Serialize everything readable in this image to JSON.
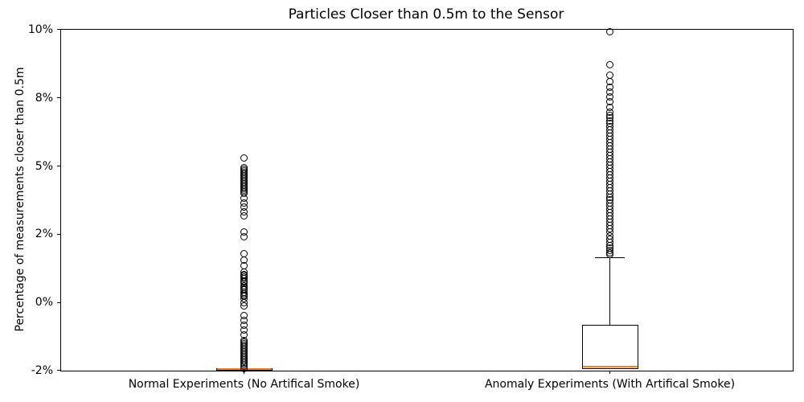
{
  "chart_data": {
    "type": "boxplot",
    "title": "Particles Closer than 0.5m to the Sensor",
    "ylabel": "Percentage of measurements closer than 0.5m",
    "xlabel": "",
    "grid": false,
    "legend": null,
    "y_axis": {
      "tick_labels": [
        "10%",
        "8%",
        "5%",
        "2%",
        "0%",
        "-2%"
      ],
      "tick_values": [
        10,
        8,
        5,
        2,
        0,
        -2
      ],
      "note": "ticks are evenly spaced on screen despite unequal value steps"
    },
    "accent_colors": {
      "median": "#ff7f0e",
      "box": "#000000",
      "text": "#000000"
    },
    "groups": [
      {
        "label": "Normal Experiments (No Artifical Smoke)",
        "median": -1.96,
        "q1": -2.0,
        "q3": -1.92,
        "whisker_low": -2.0,
        "whisker_high": -1.92,
        "outliers": [
          5.35,
          4.93,
          4.86,
          4.79,
          4.72,
          4.65,
          4.58,
          4.51,
          4.44,
          4.36,
          4.29,
          4.22,
          4.15,
          4.08,
          4.01,
          3.94,
          3.87,
          3.8,
          3.59,
          3.38,
          3.2,
          2.99,
          2.81,
          2.1,
          1.93,
          1.43,
          1.24,
          1.07,
          0.88,
          0.83,
          0.79,
          0.74,
          0.69,
          0.64,
          0.6,
          0.55,
          0.5,
          0.45,
          0.4,
          0.36,
          0.31,
          0.26,
          0.21,
          0.17,
          0.1,
          0.0,
          -0.1,
          -0.39,
          -0.53,
          -0.67,
          -0.82,
          -0.96,
          -1.11,
          -1.16,
          -1.2,
          -1.25,
          -1.3,
          -1.35,
          -1.4,
          -1.45,
          -1.49,
          -1.54,
          -1.59,
          -1.64,
          -1.69,
          -1.73,
          -1.78,
          -1.83,
          -1.88,
          -1.93
        ]
      },
      {
        "label": "Anomaly Experiments (With Artifical Smoke)",
        "median": -1.88,
        "q1": -1.96,
        "q3": -0.65,
        "whisker_low": -1.96,
        "whisker_high": 1.31,
        "outliers": [
          9.93,
          8.97,
          8.67,
          8.48,
          8.32,
          8.18,
          8.02,
          7.82,
          7.57,
          7.39,
          7.25,
          7.14,
          7.0,
          6.89,
          6.75,
          6.61,
          6.46,
          6.32,
          6.18,
          6.04,
          5.89,
          5.75,
          5.61,
          5.46,
          5.32,
          5.18,
          5.04,
          4.89,
          4.75,
          4.61,
          4.47,
          4.33,
          4.19,
          4.05,
          3.91,
          3.76,
          3.62,
          3.52,
          3.38,
          3.24,
          3.09,
          2.95,
          2.81,
          2.67,
          2.53,
          2.39,
          2.25,
          2.11,
          1.95,
          1.86,
          1.76,
          1.67,
          1.6,
          1.52,
          1.45,
          1.4
        ]
      }
    ]
  }
}
